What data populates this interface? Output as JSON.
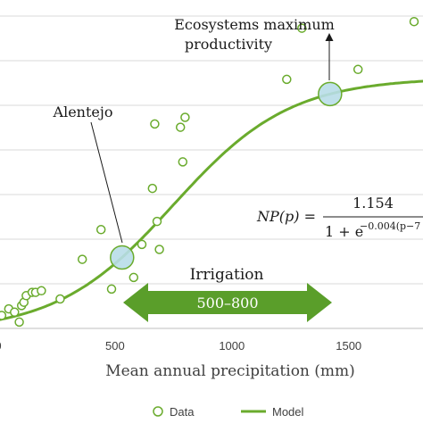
{
  "chart_data": {
    "type": "scatter",
    "title": "",
    "xlabel": "Mean annual precipitation (mm)",
    "ylabel": "",
    "xlim": [
      0,
      1800
    ],
    "xticks": [
      0,
      500,
      1000,
      1500
    ],
    "x_tick_labels": [
      "0",
      "500",
      "1000",
      "1500"
    ],
    "grid": "horizontal",
    "legend_position": "bottom",
    "colors": {
      "series": "#6aab2d",
      "highlight_fill": "#b8dde8",
      "highlight_stroke": "#6aab2d",
      "arrow": "#5a9e2a"
    },
    "series": [
      {
        "name": "Data",
        "kind": "points",
        "points": [
          [
            15,
            0.1
          ],
          [
            45,
            0.14
          ],
          [
            70,
            0.12
          ],
          [
            90,
            0.06
          ],
          [
            100,
            0.16
          ],
          [
            110,
            0.18
          ],
          [
            120,
            0.22
          ],
          [
            145,
            0.24
          ],
          [
            160,
            0.24
          ],
          [
            185,
            0.25
          ],
          [
            265,
            0.2
          ],
          [
            360,
            0.44
          ],
          [
            440,
            0.62
          ],
          [
            485,
            0.26
          ],
          [
            580,
            0.33
          ],
          [
            615,
            0.53
          ],
          [
            660,
            0.87
          ],
          [
            670,
            1.26
          ],
          [
            680,
            0.67
          ],
          [
            690,
            0.5
          ],
          [
            780,
            1.24
          ],
          [
            800,
            1.3
          ],
          [
            790,
            1.03
          ],
          [
            1235,
            1.53
          ],
          [
            1300,
            1.84
          ],
          [
            1540,
            1.59
          ],
          [
            1780,
            1.88
          ]
        ]
      },
      {
        "name": "Model",
        "kind": "curve",
        "formula": "1.154 / (1 + exp(-0.004*(p - 750)))",
        "scale": 1.54,
        "asymptote": 1.154,
        "k": 0.004,
        "midpoint": 750
      }
    ],
    "highlights": [
      {
        "label": "Alentejo",
        "x": 530
      },
      {
        "label": "Ecosystems maximum productivity",
        "x": 1420
      }
    ],
    "annotations": {
      "alentejo": "Alentejo",
      "ecosystems_line1": "Ecosystems maximum",
      "ecosystems_line2": "productivity",
      "irrigation_title": "Irrigation",
      "irrigation_range_label": "500–800",
      "irrigation_range": [
        500,
        800
      ],
      "equation_lhs": "NP(p) =",
      "equation_numerator": "1.154",
      "equation_denominator": "1 + e",
      "equation_exponent": "−0.004(p−7"
    },
    "legend": {
      "data": "Data",
      "model": "Model"
    }
  }
}
